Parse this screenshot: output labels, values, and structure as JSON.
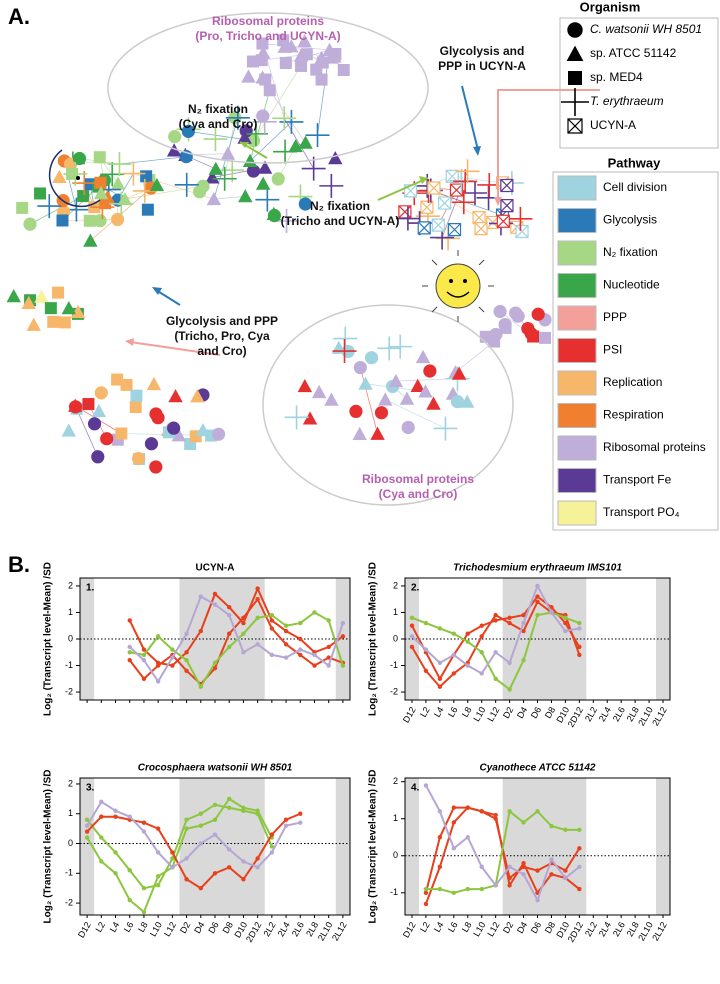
{
  "panel_a": {
    "label": "A.",
    "annotations": [
      {
        "lines": [
          "Ribosomal proteins",
          "(Pro, Tricho and UCYN-A)"
        ],
        "color": "#b65fb0"
      },
      {
        "lines": [
          "N₂ fixation",
          "(Cya and Cro)"
        ],
        "color": "#111111"
      },
      {
        "lines": [
          "Glycolysis and",
          "PPP in UCYN-A"
        ],
        "color": "#111111"
      },
      {
        "lines": [
          "N₂ fixation",
          "(Tricho and UCYN-A)"
        ],
        "color": "#111111"
      },
      {
        "lines": [
          "Glycolysis and PPP",
          "(Tricho, Pro, Cya",
          "and Cro)"
        ],
        "color": "#111111"
      },
      {
        "lines": [
          "Ribosomal proteins",
          "(Cya and Cro)"
        ],
        "color": "#b65fb0"
      }
    ],
    "organism_legend": {
      "title": "Organism",
      "items": [
        "C. watsonii WH 8501",
        "sp. ATCC 51142",
        "sp. MED4",
        "T. erythraeum",
        "UCYN-A"
      ]
    },
    "pathway_legend": {
      "title": "Pathway",
      "items": [
        {
          "label": "Cell division",
          "color": "#9fd3e0"
        },
        {
          "label": "Glycolysis",
          "color": "#2a7ab8"
        },
        {
          "label": "N₂ fixation",
          "color": "#a6d785"
        },
        {
          "label": "Nucleotide",
          "color": "#3aa64a"
        },
        {
          "label": "PPP",
          "color": "#f4a09a"
        },
        {
          "label": "PSI",
          "color": "#e63030"
        },
        {
          "label": "Replication",
          "color": "#f7b76b"
        },
        {
          "label": "Respiration",
          "color": "#f08030"
        },
        {
          "label": "Ribosomal proteins",
          "color": "#bfaed9"
        },
        {
          "label": "Transport Fe",
          "color": "#5b3a96"
        },
        {
          "label": "Transport PO₄",
          "color": "#f6f29a"
        }
      ]
    }
  },
  "panel_b": {
    "label": "B."
  },
  "chart_data": [
    {
      "type": "line",
      "number": "1.",
      "title": "UCYN-A",
      "ylabel": "Log₂ (Transcript level-Mean) /SD",
      "categories": [
        null,
        null,
        null,
        null,
        null,
        null,
        null,
        null,
        null,
        null,
        null,
        null,
        null,
        null,
        null,
        null,
        null,
        null,
        null
      ],
      "ylim": [
        -2.3,
        2.3
      ],
      "yticks": [
        -2,
        -1,
        0,
        1,
        2
      ],
      "zero_line": true,
      "night_shading": [
        [
          0,
          0
        ],
        [
          7,
          12
        ],
        [
          18,
          18
        ]
      ],
      "series": [
        {
          "color": "#e8401c",
          "values": [
            null,
            null,
            null,
            0.7,
            -0.4,
            -0.9,
            -1.0,
            -0.5,
            0.3,
            1.7,
            1.2,
            0.6,
            1.9,
            0.7,
            0.3,
            0.0,
            -0.5,
            -0.3,
            0.1
          ]
        },
        {
          "color": "#e8401c",
          "values": [
            null,
            null,
            null,
            -0.8,
            -1.5,
            -1.0,
            -0.6,
            -1.2,
            -1.7,
            -1.1,
            0.2,
            0.8,
            1.5,
            0.4,
            -0.2,
            -0.6,
            -1.0,
            -0.7,
            -0.9
          ]
        },
        {
          "color": "#8cc63f",
          "values": [
            null,
            null,
            null,
            -0.5,
            -0.6,
            0.1,
            -0.4,
            -0.8,
            -1.8,
            -0.9,
            -0.3,
            0.2,
            0.8,
            0.9,
            0.5,
            0.6,
            1.0,
            0.7,
            -1.0
          ]
        },
        {
          "color": "#b6a6d4",
          "values": [
            null,
            null,
            null,
            -0.3,
            -0.8,
            -1.6,
            -0.7,
            0.2,
            1.6,
            1.3,
            0.9,
            -0.5,
            -0.2,
            -0.6,
            -0.7,
            -0.4,
            -0.6,
            -1.0,
            0.6
          ]
        }
      ]
    },
    {
      "type": "line",
      "number": "2.",
      "title": "Trichodesmium erythraeum IMS101",
      "ylabel": "Log₂ (Transcript level-Mean) /SD",
      "categories": [
        "D12",
        "L2",
        "L4",
        "L6",
        "L8",
        "L10",
        "L12",
        "D2",
        "D4",
        "D6",
        "D8",
        "D10",
        "2D12",
        "2L2",
        "2L4",
        "2L6",
        "2L8",
        "2L10",
        "2L12"
      ],
      "ylim": [
        -2.3,
        2.3
      ],
      "yticks": [
        -2,
        -1,
        0,
        1,
        2
      ],
      "zero_line": true,
      "night_shading": [
        [
          0,
          0
        ],
        [
          7,
          12
        ],
        [
          18,
          18
        ]
      ],
      "series": [
        {
          "color": "#e8401c",
          "values": [
            0.5,
            -0.5,
            -1.5,
            -0.6,
            0.2,
            0.5,
            0.7,
            0.8,
            0.9,
            1.6,
            1.2,
            0.6,
            -0.3,
            null,
            null,
            null,
            null,
            null,
            null
          ]
        },
        {
          "color": "#e8401c",
          "values": [
            -0.3,
            -1.2,
            -1.8,
            -1.3,
            -0.9,
            0.1,
            0.9,
            0.6,
            0.3,
            1.4,
            1.0,
            0.9,
            -0.6,
            null,
            null,
            null,
            null,
            null,
            null
          ]
        },
        {
          "color": "#8cc63f",
          "values": [
            0.8,
            0.6,
            0.4,
            0.2,
            -0.1,
            -0.5,
            -1.5,
            -1.9,
            -0.8,
            0.9,
            1.0,
            0.8,
            0.6,
            null,
            null,
            null,
            null,
            null,
            null
          ]
        },
        {
          "color": "#b6a6d4",
          "values": [
            0.1,
            -0.4,
            -0.9,
            -0.6,
            -1.0,
            -1.3,
            -0.5,
            -0.9,
            0.6,
            2.0,
            1.0,
            0.3,
            0.4,
            null,
            null,
            null,
            null,
            null,
            null
          ]
        }
      ]
    },
    {
      "type": "line",
      "number": "3.",
      "title": "Crocosphaera watsonii WH 8501",
      "ylabel": "Log₂ (Transcript level-Mean) /SD",
      "categories": [
        "D12",
        "L2",
        "L4",
        "L6",
        "L8",
        "L10",
        "L12",
        "D2",
        "D4",
        "D6",
        "D8",
        "D10",
        "2D12",
        "2L2",
        "2L4",
        "2L6",
        "2L8",
        "2L10",
        "2L12"
      ],
      "ylim": [
        -2.4,
        2.2
      ],
      "yticks": [
        -2,
        -1,
        0,
        1,
        2
      ],
      "zero_line": true,
      "night_shading": [
        [
          0,
          0
        ],
        [
          7,
          12
        ],
        [
          18,
          18
        ]
      ],
      "series": [
        {
          "color": "#8cc63f",
          "values": [
            0.8,
            0.2,
            -0.3,
            -0.9,
            -1.5,
            -1.4,
            -0.5,
            0.8,
            1.0,
            1.3,
            1.2,
            1.1,
            1.0,
            -0.1,
            null,
            null,
            null,
            null,
            null
          ]
        },
        {
          "color": "#8cc63f",
          "values": [
            0.2,
            -0.6,
            -1.0,
            -1.9,
            -2.3,
            -1.1,
            -0.8,
            0.5,
            0.6,
            0.8,
            1.5,
            1.2,
            1.1,
            0.2,
            null,
            null,
            null,
            null,
            null
          ]
        },
        {
          "color": "#e8401c",
          "values": [
            0.4,
            0.9,
            0.9,
            0.8,
            0.7,
            0.5,
            -0.3,
            -1.2,
            -1.5,
            -1.0,
            -0.8,
            -1.2,
            -0.5,
            0.3,
            0.8,
            1.0,
            null,
            null,
            null
          ]
        },
        {
          "color": "#b6a6d4",
          "values": [
            0.6,
            1.4,
            1.1,
            0.9,
            0.4,
            -0.3,
            -0.8,
            -0.5,
            0.0,
            0.3,
            -0.2,
            -0.6,
            -0.8,
            -0.3,
            0.6,
            0.7,
            null,
            null,
            null
          ]
        }
      ]
    },
    {
      "type": "line",
      "number": "4.",
      "title": "Cyanothece ATCC 51142",
      "ylabel": "Log₂ (Transcript level-Mean) /SD",
      "categories": [
        "D12",
        "L2",
        "L4",
        "L6",
        "L8",
        "L10",
        "L12",
        "D2",
        "D4",
        "D6",
        "D8",
        "D10",
        "2D12",
        "2L2",
        "2L4",
        "2L6",
        "2L8",
        "2L10",
        "2L12"
      ],
      "ylim": [
        -1.6,
        2.1
      ],
      "yticks": [
        -1,
        0,
        1,
        2
      ],
      "zero_line": true,
      "night_shading": [
        [
          0,
          0
        ],
        [
          7,
          12
        ],
        [
          18,
          18
        ]
      ],
      "series": [
        {
          "color": "#e8401c",
          "values": [
            null,
            -1.3,
            -0.3,
            0.9,
            1.3,
            1.2,
            1.0,
            -0.6,
            -0.3,
            -0.4,
            -0.2,
            -0.4,
            0.2,
            null,
            null,
            null,
            null,
            null,
            null
          ]
        },
        {
          "color": "#e8401c",
          "values": [
            null,
            -1.0,
            0.5,
            1.3,
            1.3,
            1.2,
            1.1,
            -0.8,
            -0.2,
            -1.0,
            -0.5,
            -0.6,
            -0.9,
            null,
            null,
            null,
            null,
            null,
            null
          ]
        },
        {
          "color": "#8cc63f",
          "values": [
            null,
            -0.9,
            -0.9,
            -1.0,
            -0.9,
            -0.9,
            -0.8,
            1.2,
            0.9,
            1.2,
            0.8,
            0.7,
            0.7,
            null,
            null,
            null,
            null,
            null,
            null
          ]
        },
        {
          "color": "#b6a6d4",
          "values": [
            null,
            1.9,
            1.2,
            0.2,
            0.5,
            -0.3,
            -0.8,
            -0.3,
            -0.5,
            -1.2,
            -0.1,
            -0.6,
            -0.3,
            null,
            null,
            null,
            null,
            null,
            null
          ]
        }
      ]
    }
  ]
}
